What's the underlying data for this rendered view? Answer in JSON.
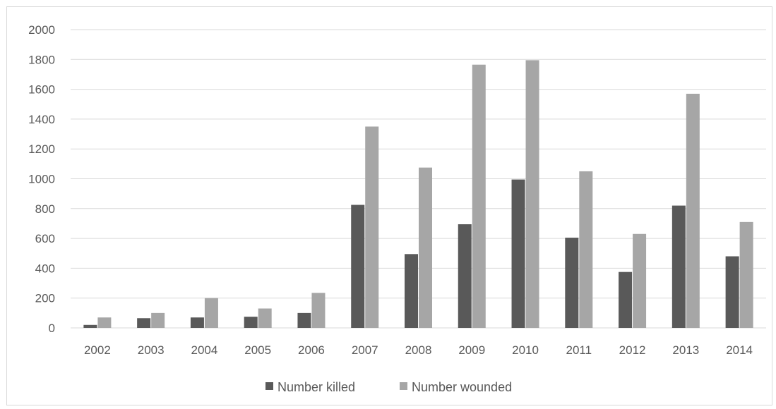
{
  "chart_data": {
    "type": "bar",
    "categories": [
      "2002",
      "2003",
      "2004",
      "2005",
      "2006",
      "2007",
      "2008",
      "2009",
      "2010",
      "2011",
      "2012",
      "2013",
      "2014"
    ],
    "series": [
      {
        "name": "Number killed",
        "color": "#595959",
        "values": [
          20,
          65,
          70,
          75,
          100,
          825,
          495,
          695,
          995,
          605,
          375,
          820,
          480
        ]
      },
      {
        "name": "Number wounded",
        "color": "#a6a6a6",
        "values": [
          70,
          100,
          200,
          130,
          235,
          1350,
          1075,
          1765,
          1795,
          1050,
          630,
          1570,
          710
        ]
      }
    ],
    "yticks": [
      "0",
      "200",
      "400",
      "600",
      "800",
      "1000",
      "1200",
      "1400",
      "1600",
      "1800",
      "2000"
    ],
    "ylim": [
      0,
      2000
    ],
    "grid": true,
    "legend": "bottom-center",
    "title": "",
    "xlabel": "",
    "ylabel": ""
  }
}
